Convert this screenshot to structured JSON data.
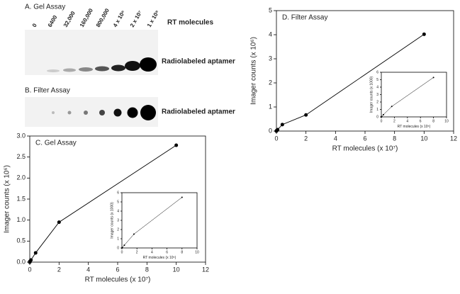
{
  "gels": [
    {
      "title": "A. Gel Assay",
      "lanes": [
        "0",
        "6400",
        "32,000",
        "160,000",
        "800,000",
        "4 x 10⁶",
        "2 x 10⁷",
        "1 x 10⁸"
      ],
      "lanes_label": "RT molecules",
      "band_label": "Radiolabeled aptamer"
    },
    {
      "title": "B. Filter Assay",
      "band_label": "Radiolabeled aptamer"
    }
  ],
  "chart_data": [
    {
      "type": "line",
      "title": "C. Gel Assay",
      "x_label": "RT molecules (x 10⁷)",
      "y_label": "Imager counts (x 10⁶)",
      "color": "#000000",
      "x": [
        0,
        0.00064,
        0.0032,
        0.016,
        0.08,
        0.4,
        2,
        10
      ],
      "values": [
        0,
        0,
        0.01,
        0.02,
        0.05,
        0.22,
        0.95,
        2.78
      ],
      "xlim": [
        0,
        12
      ],
      "xticks": [
        0,
        2,
        4,
        6,
        8,
        10,
        12
      ],
      "ylim": [
        0,
        3
      ],
      "yticks": [
        {
          "value": 0,
          "label": "0.0"
        },
        0.5,
        {
          "value": 1,
          "label": "1.0"
        },
        1.5,
        {
          "value": 2,
          "label": "2.0"
        },
        2.5,
        {
          "value": 3,
          "label": "3.0"
        }
      ]
    },
    {
      "type": "line",
      "x_label": "RT molecules (x 10⁵)",
      "y_label": "Imager counts (x 1000)",
      "color": "#000000",
      "x": [
        0,
        0.064,
        0.32,
        1.6,
        8
      ],
      "values": [
        0,
        0.05,
        0.3,
        1.5,
        5.5
      ],
      "xlim": [
        0,
        10
      ],
      "xticks": [
        0,
        2,
        4,
        6,
        8,
        10
      ],
      "ylim": [
        0,
        6
      ],
      "yticks": [
        0,
        1,
        2,
        3,
        4,
        5,
        6
      ]
    },
    {
      "type": "line",
      "title": "D. Filter Assay",
      "x_label": "RT molecules (x 10⁷)",
      "y_label": "Imager counts (x 10⁶)",
      "color": "#000000",
      "x": [
        0,
        0.00064,
        0.0032,
        0.016,
        0.08,
        0.4,
        2,
        10
      ],
      "values": [
        0,
        0,
        0.01,
        0.02,
        0.06,
        0.27,
        0.67,
        4.02
      ],
      "xlim": [
        0,
        12
      ],
      "xticks": [
        0,
        2,
        4,
        6,
        8,
        10,
        12
      ],
      "ylim": [
        0,
        5
      ],
      "yticks": [
        0,
        1,
        2,
        3,
        4,
        5
      ]
    },
    {
      "type": "line",
      "x_label": "RT molecules (x 10⁵)",
      "y_label": "Imager counts (x 1000)",
      "color": "#000000",
      "x": [
        0,
        0.064,
        0.32,
        1.6,
        8
      ],
      "values": [
        0,
        0.05,
        0.3,
        1.4,
        5.3
      ],
      "xlim": [
        0,
        10
      ],
      "xticks": [
        0,
        2,
        4,
        6,
        8,
        10
      ],
      "ylim": [
        0,
        6
      ],
      "yticks": [
        0,
        1,
        2,
        3,
        4,
        5,
        6
      ]
    }
  ]
}
